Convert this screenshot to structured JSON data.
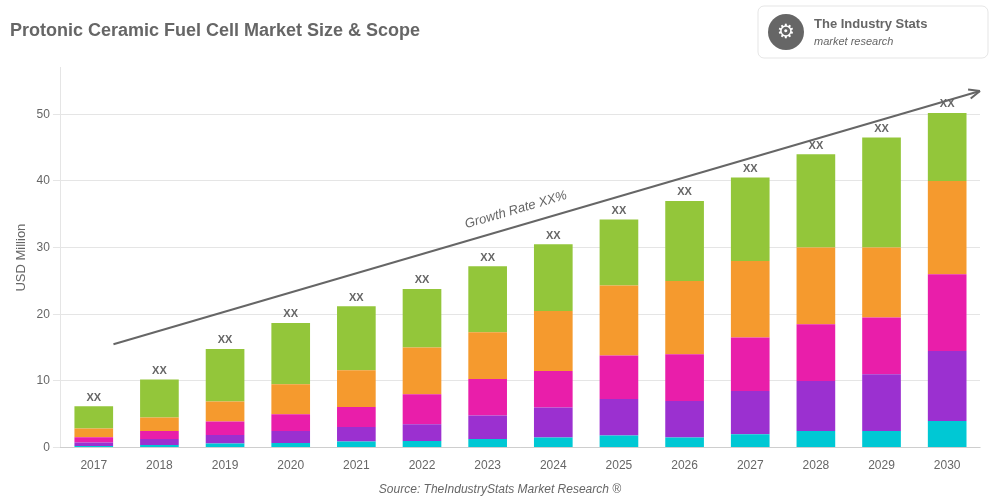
{
  "chart_data": {
    "type": "bar",
    "stacked": true,
    "title": "Protonic Ceramic Fuel Cell Market Size & Scope",
    "ylabel": "USD Million",
    "categories": [
      "2017",
      "2018",
      "2019",
      "2020",
      "2021",
      "2022",
      "2023",
      "2024",
      "2025",
      "2026",
      "2027",
      "2028",
      "2029",
      "2030"
    ],
    "series": [
      {
        "color": "#00c8d4",
        "values": [
          0.25,
          0.4,
          0.6,
          0.7,
          0.9,
          1.0,
          1.3,
          1.5,
          1.8,
          1.5,
          2.0,
          2.5,
          2.5,
          4.0
        ]
      },
      {
        "color": "#9b30d0",
        "values": [
          0.5,
          0.9,
          1.3,
          1.8,
          2.2,
          2.5,
          3.5,
          4.5,
          5.5,
          5.5,
          6.5,
          7.5,
          8.5,
          10.5
        ]
      },
      {
        "color": "#e91eaa",
        "values": [
          0.8,
          1.2,
          2.0,
          2.5,
          3.0,
          4.5,
          5.5,
          5.5,
          6.5,
          7.0,
          8.0,
          8.5,
          8.5,
          11.5
        ]
      },
      {
        "color": "#f59a2e",
        "values": [
          1.3,
          2.0,
          3.0,
          4.5,
          5.5,
          7.0,
          7.0,
          9.0,
          10.5,
          11.0,
          11.5,
          11.5,
          10.5,
          14.0
        ]
      },
      {
        "color": "#93c63a",
        "values": [
          3.35,
          5.7,
          7.9,
          9.2,
          9.6,
          8.8,
          9.9,
          10.0,
          9.9,
          12.0,
          12.5,
          14.0,
          16.5,
          10.2
        ]
      }
    ],
    "value_labels": [
      "XX",
      "XX",
      "XX",
      "XX",
      "XX",
      "XX",
      "XX",
      "XX",
      "XX",
      "XX",
      "XX",
      "XX",
      "XX",
      "XX"
    ],
    "annotation": "Growth Rate XX%",
    "source": "Source: TheIndustryStats Market Research ®",
    "logo": {
      "icon": "⚙",
      "lines": [
        "The Industry Stats",
        "market research"
      ]
    },
    "ylim": [
      0,
      57
    ],
    "yticks": [
      0,
      10,
      20,
      30,
      40,
      50
    ],
    "grid": true
  }
}
